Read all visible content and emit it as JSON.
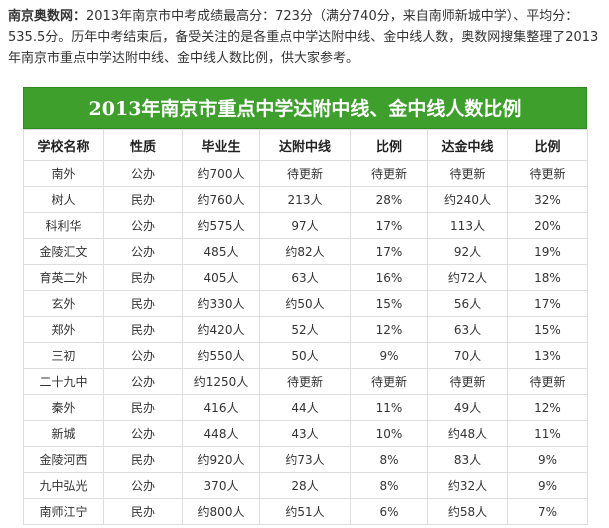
{
  "intro": {
    "source": "南京奥数网：",
    "text": "2013年南京市中考成绩最高分：723分（满分740分，来自南师新城中学）、平均分：535.5分。历年中考结束后，备受关注的是各重点中学达附中线、金中线人数，奥数网搜集整理了2013年南京市重点中学达附中线、金中线人数比例，供大家参考。"
  },
  "table": {
    "title": "2013年南京市重点中学达附中线、金中线人数比例",
    "headers": [
      "学校名称",
      "性质",
      "毕业生",
      "达附中线",
      "比例",
      "达金中线",
      "比例"
    ],
    "rows": [
      [
        "南外",
        "公办",
        "约700人",
        "待更新",
        "待更新",
        "待更新",
        "待更新"
      ],
      [
        "树人",
        "民办",
        "约760人",
        "213人",
        "28%",
        "约240人",
        "32%"
      ],
      [
        "科利华",
        "公办",
        "约575人",
        "97人",
        "17%",
        "113人",
        "20%"
      ],
      [
        "金陵汇文",
        "公办",
        "485人",
        "约82人",
        "17%",
        "92人",
        "19%"
      ],
      [
        "育英二外",
        "民办",
        "405人",
        "63人",
        "16%",
        "约72人",
        "18%"
      ],
      [
        "玄外",
        "民办",
        "约330人",
        "约50人",
        "15%",
        "56人",
        "17%"
      ],
      [
        "郑外",
        "民办",
        "约420人",
        "52人",
        "12%",
        "63人",
        "15%"
      ],
      [
        "三初",
        "公办",
        "约550人",
        "50人",
        "9%",
        "70人",
        "13%"
      ],
      [
        "二十九中",
        "公办",
        "约1250人",
        "待更新",
        "待更新",
        "待更新",
        "待更新"
      ],
      [
        "秦外",
        "民办",
        "416人",
        "44人",
        "11%",
        "49人",
        "12%"
      ],
      [
        "新城",
        "公办",
        "448人",
        "43人",
        "10%",
        "约48人",
        "11%"
      ],
      [
        "金陵河西",
        "民办",
        "约920人",
        "约73人",
        "8%",
        "83人",
        "9%"
      ],
      [
        "九中弘光",
        "公办",
        "370人",
        "28人",
        "8%",
        "约32人",
        "9%"
      ],
      [
        "南师江宁",
        "民办",
        "约800人",
        "约51人",
        "6%",
        "约58人",
        "7%"
      ]
    ]
  },
  "colors": {
    "title_bg": "#3f9f2d",
    "title_text": "#ffffff",
    "grid": "#dddddd"
  }
}
